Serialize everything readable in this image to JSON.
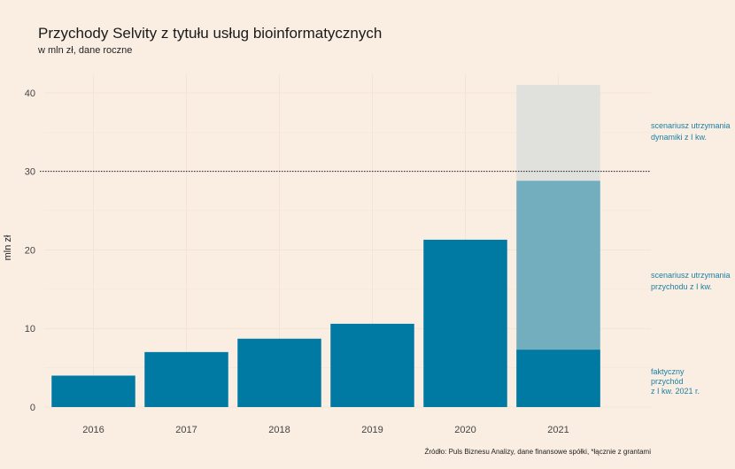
{
  "colors": {
    "background": "#faeee3",
    "bar": "#007aa3",
    "scenario_q1_revenue": "#73aebf",
    "scenario_q1_dynamics": "#e0e1dc",
    "annotation_text": "#1a7fa3",
    "reference_line": "#1a1a1a",
    "grid": "#f3e4d8"
  },
  "chart_data": {
    "type": "bar",
    "title": "Przychody Selvity z tytułu usług bioinformatycznych",
    "subtitle": "w mln zł, dane roczne",
    "xlabel": "",
    "ylabel": "mln zł",
    "ylim": [
      0,
      41
    ],
    "yticks": [
      0,
      10,
      20,
      30,
      40
    ],
    "grid": true,
    "reference_line": {
      "y": 30,
      "style": "dotted"
    },
    "categories": [
      "2016",
      "2017",
      "2018",
      "2019",
      "2020",
      "2021"
    ],
    "series": [
      {
        "key": "actual",
        "values": [
          4.0,
          7.0,
          8.7,
          10.6,
          21.3,
          7.3
        ]
      },
      {
        "key": "scenario_revenue",
        "values": [
          null,
          null,
          null,
          null,
          null,
          28.8
        ]
      },
      {
        "key": "scenario_dynamics",
        "values": [
          null,
          null,
          null,
          null,
          null,
          41.0
        ]
      }
    ],
    "annotations": {
      "dynamics": [
        "scenariusz utrzymania",
        "dynamiki z I kw."
      ],
      "revenue": [
        "scenariusz utrzymania",
        "przychodu z I kw."
      ],
      "actual": [
        "faktyczny",
        "przychód",
        "z I kw. 2021 r."
      ]
    },
    "source": "Źródło: Puls Biznesu Analizy, dane finansowe spółki, *łącznie z grantami"
  }
}
